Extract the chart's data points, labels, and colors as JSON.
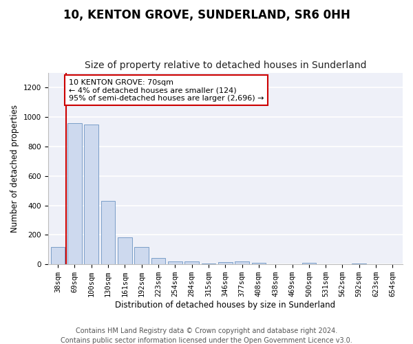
{
  "title": "10, KENTON GROVE, SUNDERLAND, SR6 0HH",
  "subtitle": "Size of property relative to detached houses in Sunderland",
  "xlabel": "Distribution of detached houses by size in Sunderland",
  "ylabel": "Number of detached properties",
  "categories": [
    "38sqm",
    "69sqm",
    "100sqm",
    "130sqm",
    "161sqm",
    "192sqm",
    "223sqm",
    "254sqm",
    "284sqm",
    "315sqm",
    "346sqm",
    "377sqm",
    "408sqm",
    "438sqm",
    "469sqm",
    "500sqm",
    "531sqm",
    "562sqm",
    "592sqm",
    "623sqm",
    "654sqm"
  ],
  "values": [
    120,
    960,
    950,
    430,
    185,
    120,
    45,
    22,
    20,
    5,
    15,
    18,
    10,
    0,
    0,
    10,
    0,
    0,
    8,
    0,
    0
  ],
  "bar_color": "#cdd9ee",
  "bar_edge_color": "#7a9ec8",
  "annotation_text": "10 KENTON GROVE: 70sqm\n← 4% of detached houses are smaller (124)\n95% of semi-detached houses are larger (2,696) →",
  "annotation_box_color": "#ffffff",
  "annotation_box_edge": "#cc0000",
  "annotation_text_color": "#000000",
  "vline_color": "#cc0000",
  "vline_x_index": 1,
  "ylim": [
    0,
    1300
  ],
  "yticks": [
    0,
    200,
    400,
    600,
    800,
    1000,
    1200
  ],
  "footer1": "Contains HM Land Registry data © Crown copyright and database right 2024.",
  "footer2": "Contains public sector information licensed under the Open Government Licence v3.0.",
  "bg_color": "#ffffff",
  "plot_bg_color": "#eef0f8",
  "grid_color": "#ffffff",
  "title_fontsize": 12,
  "subtitle_fontsize": 10,
  "axis_label_fontsize": 8.5,
  "tick_fontsize": 7.5,
  "footer_fontsize": 7,
  "annotation_fontsize": 8
}
